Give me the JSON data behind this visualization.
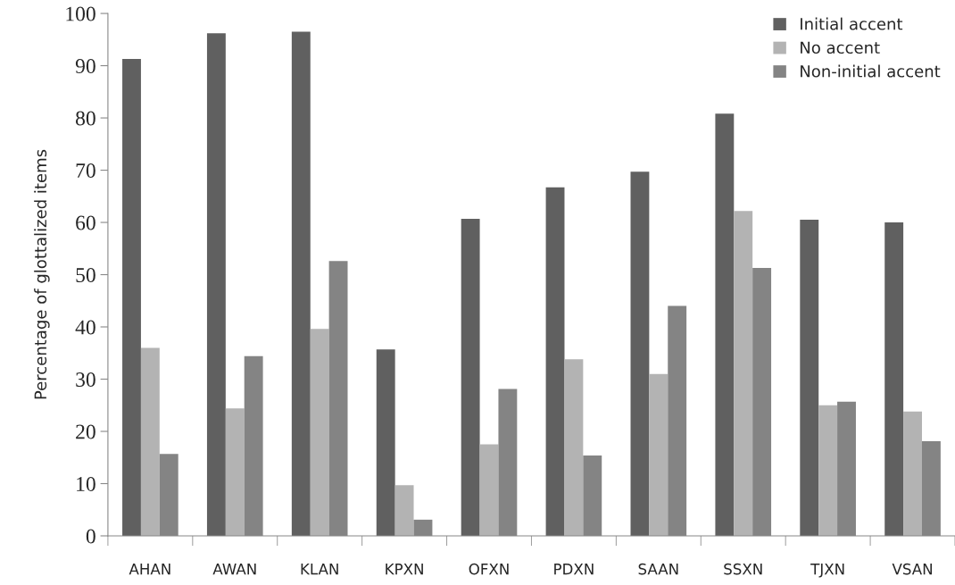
{
  "chart_data": {
    "type": "bar",
    "ylabel": "Percentage of glottalized items",
    "categories": [
      "AHAN",
      "AWAN",
      "KLAN",
      "KPXN",
      "OFXN",
      "PDXN",
      "SAAN",
      "SSXN",
      "TJXN",
      "VSAN"
    ],
    "series": [
      {
        "name": "Initial accent",
        "color": "#606060",
        "values": [
          91.3,
          96.2,
          96.5,
          35.7,
          60.7,
          66.7,
          69.7,
          80.8,
          60.5,
          60.0
        ]
      },
      {
        "name": "No accent",
        "color": "#b3b3b3",
        "values": [
          36.0,
          24.4,
          39.6,
          9.7,
          17.5,
          33.8,
          31.0,
          62.2,
          25.0,
          23.8
        ]
      },
      {
        "name": "Non-initial accent",
        "color": "#848484",
        "values": [
          15.7,
          34.4,
          52.6,
          3.1,
          28.1,
          15.4,
          44.0,
          51.3,
          25.7,
          18.1
        ]
      }
    ],
    "ylim": [
      0,
      100
    ],
    "yticks": [
      0,
      10,
      20,
      30,
      40,
      50,
      60,
      70,
      80,
      90,
      100
    ],
    "grid": false,
    "legend": "top right"
  }
}
